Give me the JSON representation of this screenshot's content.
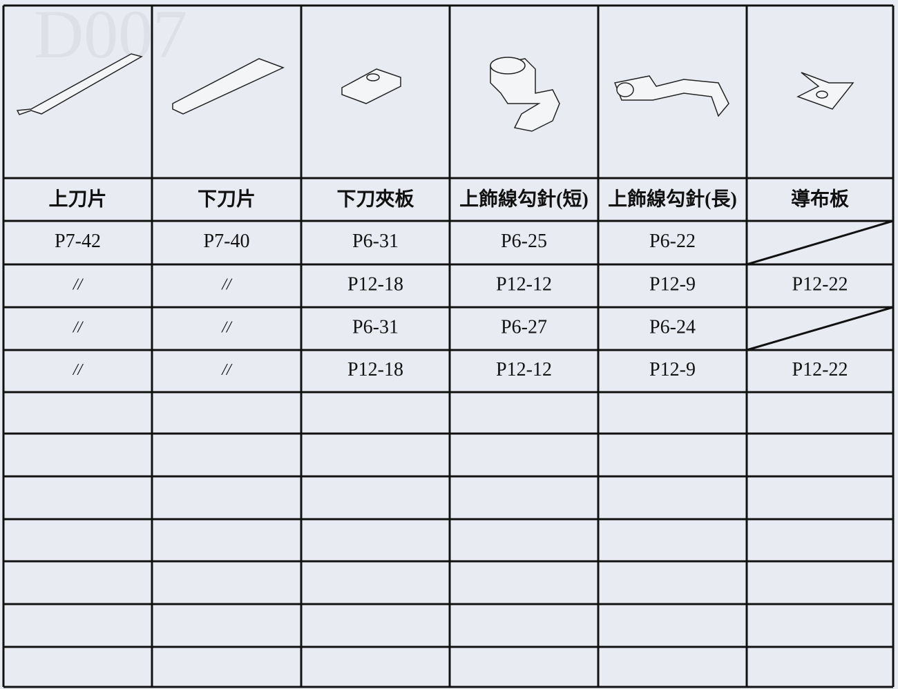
{
  "watermark": "D007",
  "table": {
    "headers": [
      "上刀片",
      "下刀片",
      "下刀夾板",
      "上飾線勾針(短)",
      "上飾線勾針(長)",
      "導布板"
    ],
    "rows": [
      [
        "P7-42",
        "P7-40",
        "P6-31",
        "P6-25",
        "P6-22",
        null
      ],
      [
        "//",
        "//",
        "P12-18",
        "P12-12",
        "P12-9",
        "P12-22"
      ],
      [
        "//",
        "//",
        "P6-31",
        "P6-27",
        "P6-24",
        null
      ],
      [
        "//",
        "//",
        "P12-18",
        "P12-12",
        "P12-9",
        "P12-22"
      ]
    ]
  }
}
